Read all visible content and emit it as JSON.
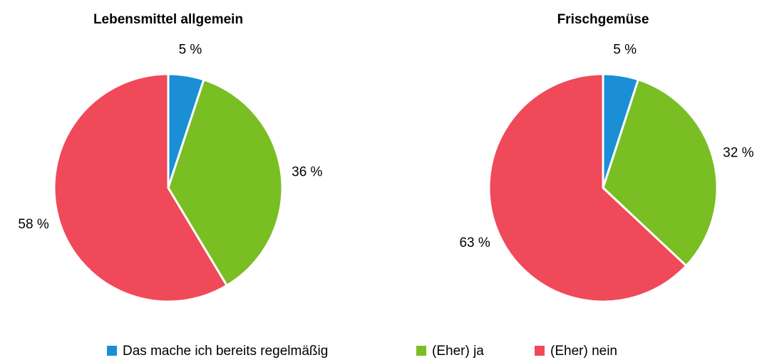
{
  "chart_data": [
    {
      "type": "pie",
      "title": "Lebensmittel allgemein",
      "values": [
        5,
        36,
        58
      ],
      "value_labels": [
        "5 %",
        "36 %",
        "58 %"
      ]
    },
    {
      "type": "pie",
      "title": "Frischgemüse",
      "values": [
        5,
        32,
        63
      ],
      "value_labels": [
        "5 %",
        "32 %",
        "63 %"
      ]
    }
  ],
  "legend": {
    "labels": [
      "Das mache ich bereits regelmäßig",
      "(Eher) ja",
      "(Eher) nein"
    ],
    "colors": [
      "#1a8fd6",
      "#79be22",
      "#f0495a"
    ]
  }
}
